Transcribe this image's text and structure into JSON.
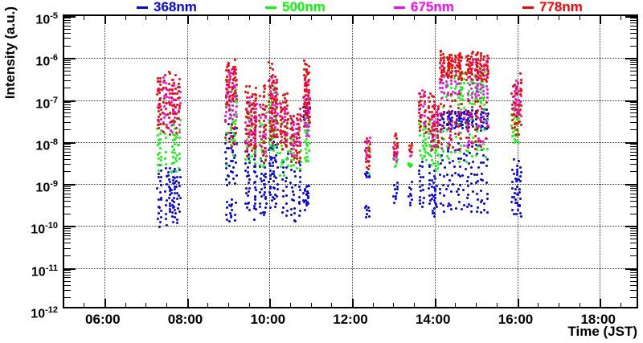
{
  "chart_data": {
    "type": "scatter",
    "title": "",
    "legend_position": "top",
    "grid": {
      "style": "dotted",
      "on": true
    },
    "series": [
      {
        "key": "blue",
        "label": "368nm",
        "color": "#0000ff"
      },
      {
        "key": "green",
        "label": "500nm",
        "color": "#00ff00"
      },
      {
        "key": "magenta",
        "label": "675nm",
        "color": "#ff00ff"
      },
      {
        "key": "red",
        "label": "778nm",
        "color": "#ff0000"
      }
    ],
    "axes": {
      "x": {
        "title": "Time (JST)",
        "t0": 5.03,
        "t1": 18.97,
        "major_ticks": [
          6,
          8,
          10,
          12,
          14,
          16,
          18
        ],
        "tick_labels": [
          "06:00",
          "08:00",
          "10:00",
          "12:00",
          "14:00",
          "16:00",
          "18:00"
        ],
        "minor_step_hours": 0.5
      },
      "y": {
        "title": "Intensity (a.u.)",
        "scale": "log",
        "decades": [
          -5,
          -6,
          -7,
          -8,
          -9,
          -10,
          -11,
          -12
        ]
      }
    },
    "clusters": [
      {
        "t": [
          7.28,
          7.87
        ],
        "cols": 9,
        "bands": {
          "red": [
            [
              -6.15,
              -7.9,
              10
            ]
          ],
          "magenta": [
            [
              -6.4,
              -7.95,
              8
            ]
          ],
          "green": [
            [
              -7.4,
              -8.9,
              9
            ]
          ],
          "blue": [
            [
              -8.4,
              -10.05,
              11
            ]
          ]
        }
      },
      {
        "t": [
          8.93,
          9.2
        ],
        "cols": 5,
        "bands": {
          "red": [
            [
              -5.98,
              -7.3,
              11
            ],
            [
              -7.4,
              -8.3,
              3
            ]
          ],
          "magenta": [
            [
              -6.05,
              -7.6,
              8
            ]
          ],
          "green": [
            [
              -6.3,
              -8.6,
              9
            ]
          ],
          "blue": [
            [
              -7.5,
              -9.2,
              8
            ],
            [
              -9.3,
              -10.0,
              4
            ]
          ]
        }
      },
      {
        "t": [
          9.4,
          9.72
        ],
        "cols": 5,
        "bands": {
          "red": [
            [
              -6.55,
              -8.5,
              10
            ]
          ],
          "magenta": [
            [
              -6.85,
              -8.35,
              8
            ]
          ],
          "green": [
            [
              -7.0,
              -8.75,
              8
            ]
          ],
          "blue": [
            [
              -7.9,
              -10.1,
              10
            ]
          ]
        }
      },
      {
        "t": [
          9.75,
          9.92
        ],
        "cols": 3,
        "bands": {
          "red": [
            [
              -6.45,
              -8.6,
              10
            ]
          ],
          "magenta": [
            [
              -7.0,
              -8.4,
              7
            ]
          ],
          "green": [
            [
              -7.2,
              -8.8,
              7
            ]
          ],
          "blue": [
            [
              -8.3,
              -10.05,
              9
            ]
          ]
        }
      },
      {
        "t": [
          9.98,
          10.2
        ],
        "cols": 5,
        "bands": {
          "red": [
            [
              -5.98,
              -8.2,
              12
            ]
          ],
          "magenta": [
            [
              -6.3,
              -8.0,
              8
            ]
          ],
          "green": [
            [
              -6.5,
              -8.5,
              8
            ]
          ],
          "blue": [
            [
              -7.6,
              -9.7,
              9
            ]
          ]
        }
      },
      {
        "t": [
          10.25,
          10.45
        ],
        "cols": 4,
        "bands": {
          "red": [
            [
              -6.7,
              -8.3,
              9
            ]
          ],
          "magenta": [
            [
              -7.0,
              -8.25,
              7
            ]
          ],
          "green": [
            [
              -7.25,
              -9.0,
              9
            ]
          ],
          "blue": [
            [
              -8.2,
              -9.9,
              8
            ]
          ]
        }
      },
      {
        "t": [
          10.52,
          10.75
        ],
        "cols": 4,
        "bands": {
          "red": [
            [
              -6.9,
              -8.65,
              10
            ]
          ],
          "magenta": [
            [
              -7.25,
              -8.4,
              7
            ]
          ],
          "green": [
            [
              -7.5,
              -8.8,
              7
            ]
          ],
          "blue": [
            [
              -8.35,
              -10.1,
              9
            ]
          ]
        }
      },
      {
        "t": [
          10.82,
          10.98
        ],
        "cols": 4,
        "bands": {
          "red": [
            [
              -5.9,
              -7.8,
              12
            ]
          ],
          "magenta": [
            [
              -6.55,
              -8.1,
              8
            ]
          ],
          "green": [
            [
              -7.15,
              -8.6,
              8
            ]
          ],
          "blue": [
            [
              -7.05,
              -7.6,
              5
            ],
            [
              -8.85,
              -9.7,
              5
            ]
          ]
        }
      },
      {
        "t": [
          12.33,
          12.43
        ],
        "cols": 2,
        "bands": {
          "red": [
            [
              -7.8,
              -8.75,
              7
            ]
          ],
          "magenta": [
            [
              -7.8,
              -8.6,
              5
            ]
          ],
          "green": [
            [
              -7.9,
              -9.0,
              5
            ]
          ],
          "blue": [
            [
              -8.65,
              -8.9,
              3
            ],
            [
              -9.4,
              -9.9,
              4
            ]
          ]
        }
      },
      {
        "t": [
          13.0,
          13.1
        ],
        "cols": 2,
        "bands": {
          "red": [
            [
              -7.75,
              -8.4,
              6
            ]
          ],
          "magenta": [
            [
              -8.1,
              -8.5,
              4
            ]
          ],
          "green": [
            [
              -8.25,
              -8.65,
              4
            ]
          ],
          "blue": [
            [
              -8.8,
              -9.55,
              5
            ]
          ]
        }
      },
      {
        "t": [
          13.38,
          13.46
        ],
        "cols": 2,
        "bands": {
          "red": [
            [
              -8.0,
              -8.3,
              4
            ]
          ],
          "magenta": [
            [
              -8.15,
              -8.4,
              2
            ]
          ],
          "green": [
            [
              -8.45,
              -8.65,
              3
            ]
          ],
          "blue": [
            [
              -8.85,
              -9.65,
              4
            ]
          ]
        }
      },
      {
        "t": [
          13.63,
          13.88
        ],
        "cols": 4,
        "bands": {
          "red": [
            [
              -6.5,
              -8.1,
              11
            ]
          ],
          "magenta": [
            [
              -6.6,
              -8.0,
              7
            ]
          ],
          "green": [
            [
              -7.35,
              -8.55,
              7
            ]
          ],
          "blue": [
            [
              -8.3,
              -9.7,
              9
            ]
          ]
        }
      },
      {
        "t": [
          13.9,
          14.1
        ],
        "cols": 4,
        "bands": {
          "red": [
            [
              -6.8,
              -8.35,
              10
            ]
          ],
          "magenta": [
            [
              -7.1,
              -8.3,
              7
            ]
          ],
          "green": [
            [
              -7.55,
              -8.85,
              7
            ]
          ],
          "blue": [
            [
              -8.55,
              -10.05,
              9
            ]
          ]
        }
      },
      {
        "t": [
          14.13,
          15.3
        ],
        "cols": 17,
        "bands": {
          "red": [
            [
              -5.78,
              -6.6,
              10
            ],
            [
              -6.7,
              -8.3,
              5
            ]
          ],
          "magenta": [
            [
              -5.95,
              -7.1,
              8
            ],
            [
              -7.2,
              -8.3,
              3
            ]
          ],
          "green": [
            [
              -6.1,
              -7.3,
              8
            ],
            [
              -7.4,
              -8.65,
              3
            ]
          ],
          "blue": [
            [
              -7.2,
              -7.75,
              6
            ],
            [
              -7.9,
              -10.0,
              6
            ]
          ]
        }
      },
      {
        "t": [
          15.83,
          16.13
        ],
        "cols": 5,
        "bands": {
          "red": [
            [
              -6.3,
              -8.0,
              9
            ]
          ],
          "magenta": [
            [
              -6.45,
              -7.6,
              7
            ]
          ],
          "green": [
            [
              -6.95,
              -8.25,
              7
            ]
          ],
          "blue": [
            [
              -8.25,
              -9.9,
              9
            ]
          ]
        }
      }
    ]
  }
}
